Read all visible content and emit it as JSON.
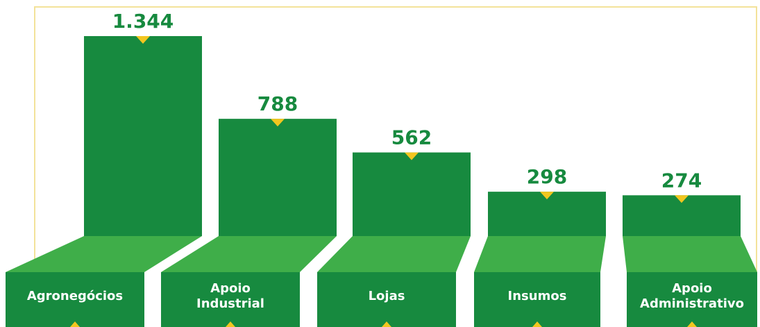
{
  "chart_data": {
    "type": "bar",
    "categories": [
      "Agronegócios",
      "Apoio\nIndustrial",
      "Lojas",
      "Insumos",
      "Apoio\nAdministrativo"
    ],
    "values": [
      1344,
      788,
      562,
      298,
      274
    ],
    "value_labels": [
      "1.344",
      "788",
      "562",
      "298",
      "274"
    ],
    "color": "#178a3f"
  }
}
